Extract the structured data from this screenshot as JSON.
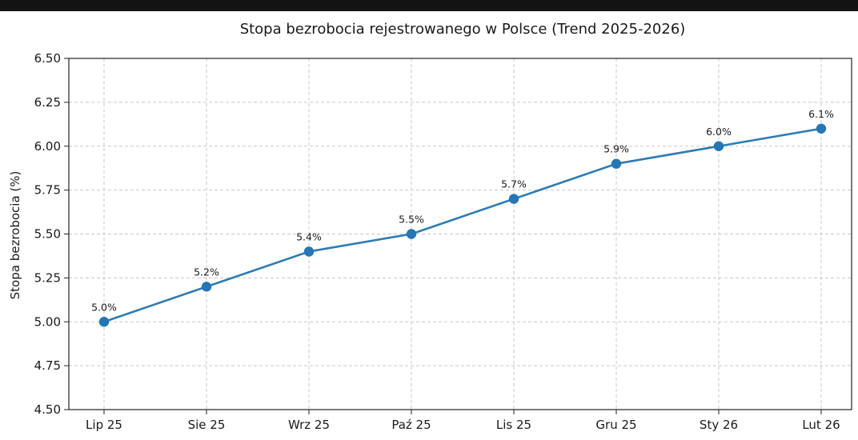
{
  "colors": {
    "line": "#2f7cb2",
    "point": "#2476b5",
    "grid": "#c8c8c8",
    "axis": "#222222",
    "topbar": "#131313"
  },
  "chart_data": {
    "type": "line",
    "title": "Stopa bezrobocia rejestrowanego w Polsce (Trend 2025-2026)",
    "xlabel": "",
    "ylabel": "Stopa bezrobocia (%)",
    "categories": [
      "Lip 25",
      "Sie 25",
      "Wrz 25",
      "Paź 25",
      "Lis 25",
      "Gru 25",
      "Sty 26",
      "Lut 26"
    ],
    "values": [
      5.0,
      5.2,
      5.4,
      5.5,
      5.7,
      5.9,
      6.0,
      6.1
    ],
    "data_labels": [
      "5.0%",
      "5.2%",
      "5.4%",
      "5.5%",
      "5.7%",
      "5.9%",
      "6.0%",
      "6.1%"
    ],
    "ylim": [
      4.5,
      6.5
    ],
    "yticks": [
      "4.50",
      "4.75",
      "5.00",
      "5.25",
      "5.50",
      "5.75",
      "6.00",
      "6.25",
      "6.50"
    ],
    "grid": true,
    "grid_style": "dashed"
  }
}
